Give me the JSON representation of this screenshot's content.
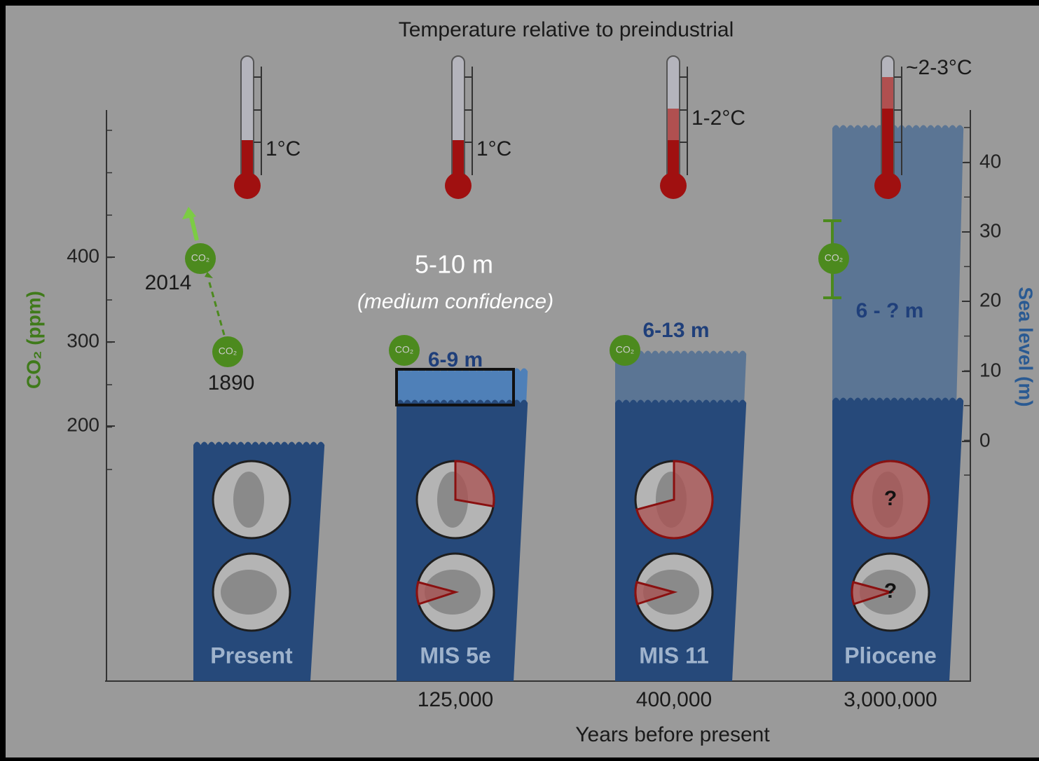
{
  "title": "Temperature relative to preindustrial",
  "left_axis": {
    "label": "CO₂ (ppm)",
    "ticks": [
      "400",
      "300",
      "200"
    ]
  },
  "right_axis": {
    "label": "Sea level (m)",
    "ticks": [
      "40",
      "30",
      "20",
      "10",
      "0"
    ]
  },
  "x_axis": {
    "label": "Years before present"
  },
  "periods": [
    {
      "name": "Present",
      "temperature": "1°C"
    },
    {
      "name": "MIS 5e",
      "years": "125,000",
      "temperature": "1°C",
      "sea_level": "6-9 m"
    },
    {
      "name": "MIS 11",
      "years": "400,000",
      "temperature": "1-2°C",
      "sea_level": "6-13 m"
    },
    {
      "name": "Pliocene",
      "years": "3,000,000",
      "temperature": "~2-3°C",
      "sea_level": "6 - ? m",
      "unknown_marks": [
        "?",
        "?"
      ]
    }
  ],
  "co2_points": [
    {
      "label": "CO₂",
      "year": "2014"
    },
    {
      "label": "CO₂",
      "year": "1890"
    },
    {
      "label": "CO₂"
    },
    {
      "label": "CO₂"
    },
    {
      "label": "CO₂"
    }
  ],
  "callout": {
    "value": "5-10 m",
    "note": "(medium confidence)"
  }
}
